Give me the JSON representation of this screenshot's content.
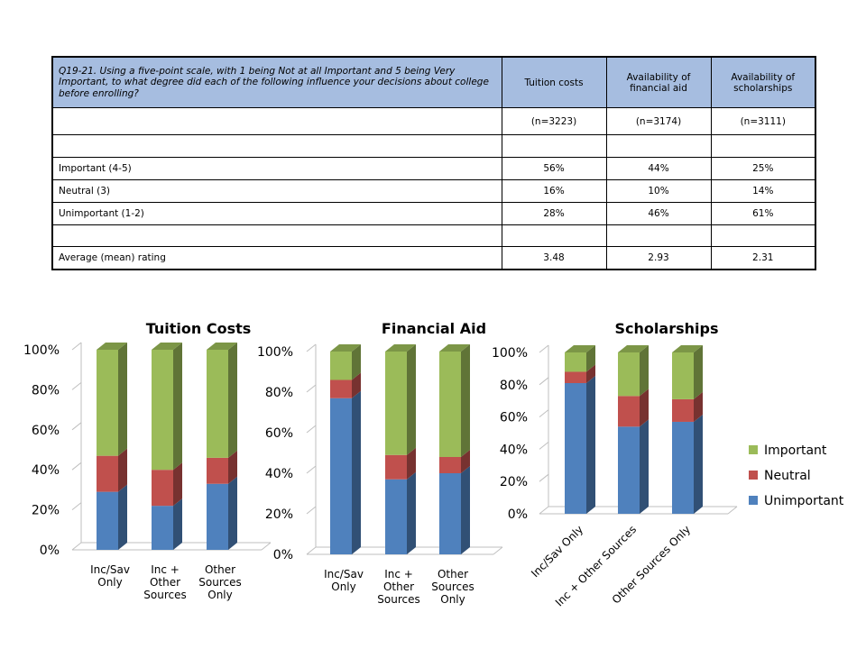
{
  "table": {
    "question": "Q19-21.  Using a five-point scale, with 1 being Not at all Important and 5 being Very Important, to what degree did each of the following influence your decisions about college before enrolling?",
    "columns": [
      "Tuition  costs",
      "Availability  of financial aid",
      "Availability  of scholarships"
    ],
    "n_values": [
      "(n=3223)",
      "(n=3174)",
      "(n=3111)"
    ],
    "rows": [
      {
        "label": "Important (4-5)",
        "values": [
          "56%",
          "44%",
          "25%"
        ]
      },
      {
        "label": "Neutral (3)",
        "values": [
          "16%",
          "10%",
          "14%"
        ]
      },
      {
        "label": "Unimportant  (1-2)",
        "values": [
          "28%",
          "46%",
          "61%"
        ]
      }
    ],
    "mean_row": {
      "label": "Average (mean) rating",
      "values": [
        "3.48",
        "2.93",
        "2.31"
      ]
    }
  },
  "chart_data": [
    {
      "type": "bar",
      "stacked": true,
      "title": "Tuition Costs",
      "categories": [
        "Inc/Sav Only",
        "Inc + Other Sources",
        "Other Sources Only"
      ],
      "category_lines": [
        [
          "Inc/Sav",
          "Only"
        ],
        [
          "Inc +",
          "Other",
          "Sources"
        ],
        [
          "Other",
          "Sources",
          "Only"
        ]
      ],
      "ylim": [
        0,
        1
      ],
      "yticks": [
        "0%",
        "20%",
        "40%",
        "60%",
        "80%",
        "100%"
      ],
      "series": [
        {
          "name": "Unimportant",
          "values": [
            0.29,
            0.22,
            0.33
          ]
        },
        {
          "name": "Neutral",
          "values": [
            0.18,
            0.18,
            0.13
          ]
        },
        {
          "name": "Important",
          "values": [
            0.53,
            0.6,
            0.54
          ]
        }
      ]
    },
    {
      "type": "bar",
      "stacked": true,
      "title": "Financial Aid",
      "categories": [
        "Inc/Sav Only",
        "Inc + Other Sources",
        "Other Sources Only"
      ],
      "category_lines": [
        [
          "Inc/Sav",
          "Only"
        ],
        [
          "Inc +",
          "Other",
          "Sources"
        ],
        [
          "Other",
          "Sources",
          "Only"
        ]
      ],
      "ylim": [
        0,
        1
      ],
      "yticks": [
        "0%",
        "20%",
        "40%",
        "60%",
        "80%",
        "100%"
      ],
      "series": [
        {
          "name": "Unimportant",
          "values": [
            0.77,
            0.37,
            0.4
          ]
        },
        {
          "name": "Neutral",
          "values": [
            0.09,
            0.12,
            0.08
          ]
        },
        {
          "name": "Important",
          "values": [
            0.14,
            0.51,
            0.52
          ]
        }
      ]
    },
    {
      "type": "bar",
      "stacked": true,
      "title": "Scholarships",
      "categories": [
        "Inc/Sav Only",
        "Inc + Other Sources",
        "Other Sources Only"
      ],
      "category_lines": [
        [
          "Inc/Sav Only"
        ],
        [
          "Inc + Other Sources"
        ],
        [
          "Other Sources Only"
        ]
      ],
      "ylim": [
        0,
        1
      ],
      "yticks": [
        "0%",
        "20%",
        "40%",
        "60%",
        "80%",
        "100%"
      ],
      "series": [
        {
          "name": "Unimportant",
          "values": [
            0.81,
            0.54,
            0.57
          ]
        },
        {
          "name": "Neutral",
          "values": [
            0.07,
            0.19,
            0.14
          ]
        },
        {
          "name": "Important",
          "values": [
            0.12,
            0.27,
            0.29
          ]
        }
      ],
      "legend": {
        "position": "right",
        "entries": [
          "Important",
          "Neutral",
          "Unimportant"
        ]
      }
    }
  ],
  "colors": {
    "Unimportant": "#4f81bd",
    "Neutral": "#c0504d",
    "Important": "#9bbb59",
    "table_header": "#a6bde0"
  }
}
